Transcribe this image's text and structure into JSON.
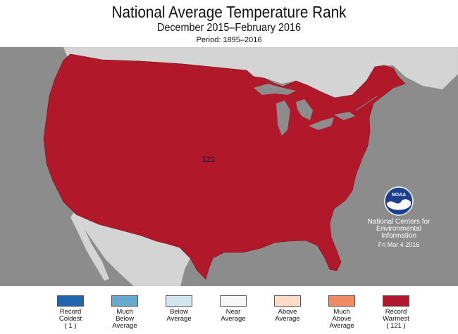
{
  "header": {
    "title": "National Average Temperature Rank",
    "subtitle": "December 2015–February 2016",
    "period": "Period: 1895–2016"
  },
  "map": {
    "rank_value": "121",
    "colors": {
      "ocean": "#8c8c8c",
      "other_land": "#d4d4d4",
      "conus_fill": "#b1182a"
    }
  },
  "branding": {
    "logo_text": "NOAA",
    "org_name": "National Centers for Environmental Information",
    "date": "Fri Mar  4 2016"
  },
  "legend": {
    "items": [
      {
        "label": "Record\nColdest\n( 1 )",
        "color": "#2166ac"
      },
      {
        "label": "Much\nBelow\nAverage",
        "color": "#67a9cf"
      },
      {
        "label": "Below\nAverage",
        "color": "#d1e5f0"
      },
      {
        "label": "Near\nAverage",
        "color": "#f7f7f7"
      },
      {
        "label": "Above\nAverage",
        "color": "#fddbc7"
      },
      {
        "label": "Much\nAbove\nAverage",
        "color": "#ef8a62"
      },
      {
        "label": "Record\nWarmest\n( 121 )",
        "color": "#b2182b"
      }
    ]
  }
}
